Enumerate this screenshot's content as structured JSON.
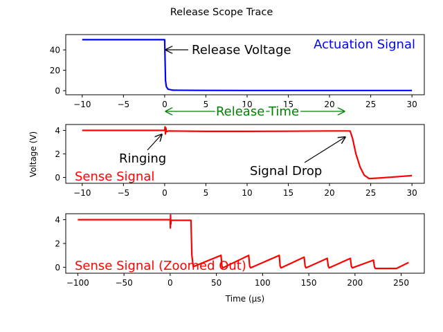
{
  "colors": {
    "actuation": "#0000ff",
    "sense": "#ff0000",
    "release_time": "#008000",
    "text": "#000000"
  },
  "chart_data": [
    {
      "type": "line",
      "suptitle": "Release Scope Trace",
      "title": "Actuation Signal",
      "xlabel": "",
      "ylabel": "",
      "xlim": [
        -12,
        31.5
      ],
      "ylim": [
        -4,
        55
      ],
      "xticks": [
        -10,
        -5,
        0,
        5,
        10,
        15,
        20,
        25,
        30
      ],
      "xticklabels": [
        "−10",
        "−5",
        "0",
        "5",
        "10",
        "15",
        "20",
        "25",
        "30"
      ],
      "yticks": [
        0,
        20,
        40
      ],
      "yticklabels": [
        "0",
        "20",
        "40"
      ],
      "series": [
        {
          "name": "Actuation Signal",
          "color": "#0000ff",
          "x": [
            -10,
            -5,
            0,
            0.05,
            0.1,
            0.2,
            0.4,
            1,
            5,
            10,
            20,
            30
          ],
          "y": [
            50,
            50,
            50,
            30,
            10,
            4,
            1.5,
            0.5,
            0.3,
            0.2,
            0.2,
            0.2
          ]
        }
      ],
      "annotations": [
        {
          "text": "Release Voltage",
          "xy": [
            0,
            40
          ],
          "xytext": [
            3.5,
            40
          ],
          "arrow": "<-"
        },
        {
          "text": "Release Time",
          "xy": [
            0,
            -22
          ],
          "xytext": [
            22.5,
            -22
          ],
          "arrow": "<->",
          "color": "#008000"
        }
      ]
    },
    {
      "type": "line",
      "title": "Sense Signal",
      "xlabel": "",
      "ylabel": "Voltage (V)",
      "xlim": [
        -12,
        31.5
      ],
      "ylim": [
        -0.5,
        4.5
      ],
      "xticks": [
        -10,
        -5,
        0,
        5,
        10,
        15,
        20,
        25,
        30
      ],
      "xticklabels": [
        "−10",
        "−5",
        "0",
        "5",
        "10",
        "15",
        "20",
        "25",
        "30"
      ],
      "yticks": [
        0,
        2,
        4
      ],
      "yticklabels": [
        "0",
        "2",
        "4"
      ],
      "series": [
        {
          "name": "Sense Signal",
          "color": "#ff0000",
          "x": [
            -10,
            -5,
            0,
            0.05,
            0.1,
            0.15,
            0.2,
            0.5,
            5,
            10,
            15,
            20,
            22.5,
            22.8,
            23.2,
            23.7,
            24.2,
            24.8,
            26,
            28,
            30
          ],
          "y": [
            4,
            4,
            4,
            4.3,
            3.7,
            4.2,
            3.9,
            3.95,
            3.92,
            3.92,
            3.93,
            3.95,
            3.95,
            3.3,
            2.0,
            0.9,
            0.2,
            -0.1,
            -0.05,
            0.05,
            0.15
          ]
        }
      ],
      "annotations": [
        {
          "text": "Ringing",
          "xy": [
            -0.2,
            3.7
          ],
          "xytext": [
            -5.5,
            1.6
          ],
          "arrow": "->"
        },
        {
          "text": "Signal Drop",
          "xy": [
            22.5,
            3.6
          ],
          "xytext": [
            10.8,
            0.6
          ],
          "arrow": "->"
        }
      ]
    },
    {
      "type": "line",
      "title": "Sense Signal (Zoomed Out)",
      "xlabel": "Time (μs)",
      "ylabel": "",
      "xlim": [
        -113,
        275
      ],
      "ylim": [
        -0.5,
        4.5
      ],
      "xticks": [
        -100,
        -50,
        0,
        50,
        100,
        150,
        200,
        250
      ],
      "xticklabels": [
        "−100",
        "−50",
        "0",
        "50",
        "100",
        "150",
        "200",
        "250"
      ],
      "yticks": [
        0,
        2,
        4
      ],
      "yticklabels": [
        "0",
        "2",
        "4"
      ],
      "series": [
        {
          "name": "Sense Signal (Zoomed Out)",
          "color": "#ff0000",
          "x": [
            -100,
            -50,
            0,
            0.2,
            0.4,
            0.6,
            1,
            20,
            22.5,
            23.5,
            25,
            55,
            56,
            57,
            85,
            86,
            87,
            118,
            119,
            120,
            145,
            146,
            147,
            170,
            171,
            172,
            195,
            196,
            197,
            220,
            221,
            222,
            245,
            258
          ],
          "y": [
            4,
            4,
            4,
            3.3,
            4.4,
            3.6,
            3.95,
            3.95,
            3.95,
            1.0,
            0.05,
            1.0,
            0.1,
            -0.05,
            1.0,
            0.1,
            -0.05,
            1.0,
            0.1,
            -0.05,
            0.85,
            0.1,
            -0.05,
            0.75,
            0.1,
            -0.05,
            0.75,
            0.1,
            -0.05,
            0.6,
            0.05,
            -0.1,
            -0.1,
            0.4
          ]
        }
      ],
      "annotations": []
    }
  ]
}
